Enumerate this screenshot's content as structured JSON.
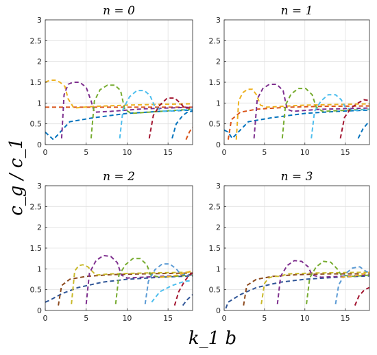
{
  "figure": {
    "ylabel": "c_g / c_1",
    "xlabel": "k_1 b"
  },
  "chart_data": [
    {
      "type": "line",
      "title": "n = 0",
      "xlim": [
        0,
        18
      ],
      "ylim": [
        0,
        3
      ],
      "xticks": [
        "0",
        "5",
        "10",
        "15"
      ],
      "yticks": [
        "0",
        "0.5",
        "1",
        "1.5",
        "2",
        "2.5",
        "3"
      ],
      "grid": true,
      "series": [
        {
          "color": "#0072BD",
          "x": [
            0,
            1.0,
            3,
            6,
            10,
            14,
            18
          ],
          "y": [
            0.3,
            0.12,
            0.55,
            0.65,
            0.75,
            0.8,
            0.83
          ]
        },
        {
          "color": "#D95319",
          "x": [
            0,
            3,
            6,
            9,
            12,
            15,
            18
          ],
          "y": [
            0.9,
            0.9,
            0.9,
            0.9,
            0.9,
            0.9,
            0.9
          ]
        },
        {
          "color": "#EDB120",
          "x": [
            0,
            0.6,
            1.2,
            1.8,
            2.4,
            2.8,
            3.5,
            6,
            10,
            14,
            18
          ],
          "y": [
            1.5,
            1.55,
            1.55,
            1.5,
            1.4,
            1.1,
            0.88,
            0.92,
            0.95,
            0.97,
            0.98
          ]
        },
        {
          "color": "#7E2F8E",
          "x": [
            2.0,
            2.3,
            2.8,
            3.4,
            4.2,
            5.0,
            5.6,
            6.0,
            8,
            12,
            18
          ],
          "y": [
            0.15,
            1.2,
            1.45,
            1.5,
            1.5,
            1.38,
            1.05,
            0.78,
            0.8,
            0.86,
            0.9
          ]
        },
        {
          "color": "#77AC30",
          "x": [
            5.6,
            6.0,
            6.7,
            7.6,
            8.5,
            9.2,
            9.7,
            10.5,
            14,
            18
          ],
          "y": [
            0.15,
            1.05,
            1.32,
            1.43,
            1.43,
            1.3,
            0.85,
            0.75,
            0.8,
            0.85
          ]
        },
        {
          "color": "#4DBEEE",
          "x": [
            9.1,
            9.5,
            10.3,
            11.2,
            12.1,
            12.8,
            13.4,
            14.5,
            18
          ],
          "y": [
            0.15,
            0.85,
            1.15,
            1.3,
            1.3,
            1.18,
            0.9,
            0.8,
            0.85
          ]
        },
        {
          "color": "#A2142F",
          "x": [
            12.7,
            13.2,
            14.0,
            14.9,
            15.8,
            16.5,
            17.0,
            18
          ],
          "y": [
            0.15,
            0.7,
            0.95,
            1.12,
            1.12,
            1.0,
            0.88,
            0.88
          ]
        },
        {
          "color": "#0072BD",
          "x": [
            15.5,
            16.0,
            16.8,
            17.5,
            18
          ],
          "y": [
            0.15,
            0.5,
            0.7,
            0.8,
            0.8
          ]
        },
        {
          "color": "#D95319",
          "x": [
            17.2,
            17.6,
            18
          ],
          "y": [
            0.12,
            0.3,
            0.42
          ]
        }
      ]
    },
    {
      "type": "line",
      "title": "n = 1",
      "xlim": [
        0,
        18
      ],
      "ylim": [
        0,
        3
      ],
      "xticks": [
        "0",
        "5",
        "10",
        "15"
      ],
      "yticks": [
        "0",
        "0.5",
        "1",
        "1.5",
        "2",
        "2.5",
        "3"
      ],
      "grid": true,
      "series": [
        {
          "color": "#0072BD",
          "x": [
            0,
            0.5,
            1.0,
            3,
            6,
            10,
            14,
            18
          ],
          "y": [
            0.35,
            0.3,
            0.15,
            0.55,
            0.65,
            0.75,
            0.8,
            0.83
          ]
        },
        {
          "color": "#D95319",
          "x": [
            0.5,
            0.9,
            2,
            4,
            8,
            12,
            18
          ],
          "y": [
            0.12,
            0.6,
            0.78,
            0.85,
            0.9,
            0.92,
            0.93
          ]
        },
        {
          "color": "#EDB120",
          "x": [
            1.5,
            1.8,
            2.3,
            2.9,
            3.5,
            4.0,
            4.5,
            5.2,
            10,
            18
          ],
          "y": [
            0.12,
            1.05,
            1.25,
            1.33,
            1.33,
            1.2,
            0.95,
            0.9,
            0.95,
            0.98
          ]
        },
        {
          "color": "#7E2F8E",
          "x": [
            3.7,
            4.1,
            4.8,
            5.6,
            6.5,
            7.3,
            7.8,
            8.5,
            12,
            18
          ],
          "y": [
            0.15,
            1.1,
            1.35,
            1.45,
            1.45,
            1.3,
            0.85,
            0.8,
            0.85,
            0.88
          ]
        },
        {
          "color": "#77AC30",
          "x": [
            7.2,
            7.6,
            8.3,
            9.2,
            10.1,
            10.9,
            11.4,
            12.2,
            18
          ],
          "y": [
            0.15,
            0.95,
            1.22,
            1.35,
            1.35,
            1.2,
            0.9,
            0.8,
            0.85
          ]
        },
        {
          "color": "#4DBEEE",
          "x": [
            10.8,
            11.2,
            12.0,
            12.9,
            13.8,
            14.5,
            15.0,
            16,
            18
          ],
          "y": [
            0.15,
            0.8,
            1.05,
            1.2,
            1.2,
            1.08,
            0.9,
            0.82,
            0.85
          ]
        },
        {
          "color": "#A2142F",
          "x": [
            14.4,
            14.9,
            15.7,
            16.6,
            17.3,
            18
          ],
          "y": [
            0.15,
            0.65,
            0.88,
            1.0,
            1.08,
            1.06
          ]
        },
        {
          "color": "#0072BD",
          "x": [
            16.6,
            17.2,
            17.7,
            18
          ],
          "y": [
            0.15,
            0.38,
            0.5,
            0.55
          ]
        }
      ]
    },
    {
      "type": "line",
      "title": "n = 2",
      "xlim": [
        0,
        18
      ],
      "ylim": [
        0,
        3
      ],
      "xticks": [
        "0",
        "5",
        "10",
        "15"
      ],
      "yticks": [
        "0",
        "0.5",
        "1",
        "1.5",
        "2",
        "2.5",
        "3"
      ],
      "grid": true,
      "series": [
        {
          "color": "#2F5597",
          "x": [
            0,
            0.6,
            2,
            4,
            7,
            10,
            14,
            18
          ],
          "y": [
            0.2,
            0.25,
            0.4,
            0.55,
            0.68,
            0.75,
            0.8,
            0.83
          ]
        },
        {
          "color": "#8C4A1E",
          "x": [
            1.6,
            2.0,
            3,
            5,
            8,
            12,
            18
          ],
          "y": [
            0.12,
            0.6,
            0.75,
            0.82,
            0.86,
            0.88,
            0.9
          ]
        },
        {
          "color": "#C9B92A",
          "x": [
            3.2,
            3.6,
            4.1,
            4.6,
            5.2,
            5.7,
            6.2,
            8,
            12,
            18
          ],
          "y": [
            0.15,
            0.95,
            1.08,
            1.1,
            1.05,
            0.95,
            0.85,
            0.88,
            0.9,
            0.92
          ]
        },
        {
          "color": "#7E2F8E",
          "x": [
            5.0,
            5.4,
            6.2,
            7.1,
            8.0,
            8.8,
            9.3,
            10,
            14,
            18
          ],
          "y": [
            0.15,
            0.9,
            1.2,
            1.32,
            1.3,
            1.15,
            0.85,
            0.78,
            0.82,
            0.85
          ]
        },
        {
          "color": "#77AC30",
          "x": [
            8.6,
            9.0,
            9.8,
            10.7,
            11.6,
            12.4,
            12.9,
            14,
            18
          ],
          "y": [
            0.15,
            0.85,
            1.1,
            1.25,
            1.25,
            1.1,
            0.85,
            0.8,
            0.85
          ]
        },
        {
          "color": "#5B9BD5",
          "x": [
            12.2,
            12.6,
            13.4,
            14.3,
            15.2,
            16.0,
            16.5,
            18
          ],
          "y": [
            0.15,
            0.7,
            0.98,
            1.12,
            1.12,
            1.0,
            0.88,
            0.85
          ]
        },
        {
          "color": "#4DBEEE",
          "x": [
            13.0,
            14,
            15.5,
            17,
            18
          ],
          "y": [
            0.2,
            0.45,
            0.6,
            0.7,
            0.72
          ]
        },
        {
          "color": "#EDB120",
          "x": [
            14.0,
            15.5,
            17,
            18
          ],
          "y": [
            0.8,
            0.82,
            0.9,
            0.96
          ]
        },
        {
          "color": "#A2142F",
          "x": [
            15.8,
            16.3,
            17.0,
            17.6,
            18
          ],
          "y": [
            0.12,
            0.45,
            0.7,
            0.85,
            0.9
          ]
        },
        {
          "color": "#2F5597",
          "x": [
            16.8,
            17.3,
            18
          ],
          "y": [
            0.12,
            0.25,
            0.38
          ]
        }
      ]
    },
    {
      "type": "line",
      "title": "n = 3",
      "xlim": [
        0,
        18
      ],
      "ylim": [
        0,
        3
      ],
      "xticks": [
        "0",
        "5",
        "10",
        "15"
      ],
      "yticks": [
        "0",
        "0.5",
        "1",
        "1.5",
        "2",
        "2.5",
        "3"
      ],
      "grid": true,
      "series": [
        {
          "color": "#2F5597",
          "x": [
            0.2,
            0.5,
            2,
            4,
            7,
            10,
            14,
            18
          ],
          "y": [
            0.05,
            0.2,
            0.38,
            0.55,
            0.68,
            0.75,
            0.8,
            0.83
          ]
        },
        {
          "color": "#8C4A1E",
          "x": [
            2.4,
            2.8,
            4,
            6,
            9,
            13,
            18
          ],
          "y": [
            0.12,
            0.6,
            0.75,
            0.82,
            0.86,
            0.88,
            0.88
          ]
        },
        {
          "color": "#C9B92A",
          "x": [
            4.6,
            5.0,
            5.5,
            6.1,
            6.8,
            7.4,
            8,
            11,
            18
          ],
          "y": [
            0.15,
            0.65,
            0.78,
            0.82,
            0.82,
            0.85,
            0.88,
            0.9,
            0.92
          ]
        },
        {
          "color": "#7E2F8E",
          "x": [
            6.6,
            7.0,
            7.8,
            8.7,
            9.6,
            10.4,
            10.9,
            12,
            18
          ],
          "y": [
            0.15,
            0.82,
            1.08,
            1.2,
            1.18,
            1.05,
            0.85,
            0.8,
            0.85
          ]
        },
        {
          "color": "#77AC30",
          "x": [
            10.2,
            10.6,
            11.4,
            12.3,
            13.2,
            14.0,
            14.5,
            16,
            18
          ],
          "y": [
            0.15,
            0.78,
            1.05,
            1.18,
            1.16,
            1.0,
            0.85,
            0.82,
            0.85
          ]
        },
        {
          "color": "#5B9BD5",
          "x": [
            13.8,
            14.2,
            15.0,
            15.9,
            16.8,
            17.5,
            18
          ],
          "y": [
            0.15,
            0.62,
            0.88,
            1.02,
            1.05,
            0.95,
            0.9
          ]
        },
        {
          "color": "#EDB120",
          "x": [
            14.5,
            16,
            17.2,
            18
          ],
          "y": [
            0.8,
            0.82,
            0.88,
            0.92
          ]
        },
        {
          "color": "#A2142F",
          "x": [
            16.2,
            16.7,
            17.4,
            18
          ],
          "y": [
            0.12,
            0.35,
            0.5,
            0.55
          ]
        }
      ]
    }
  ]
}
